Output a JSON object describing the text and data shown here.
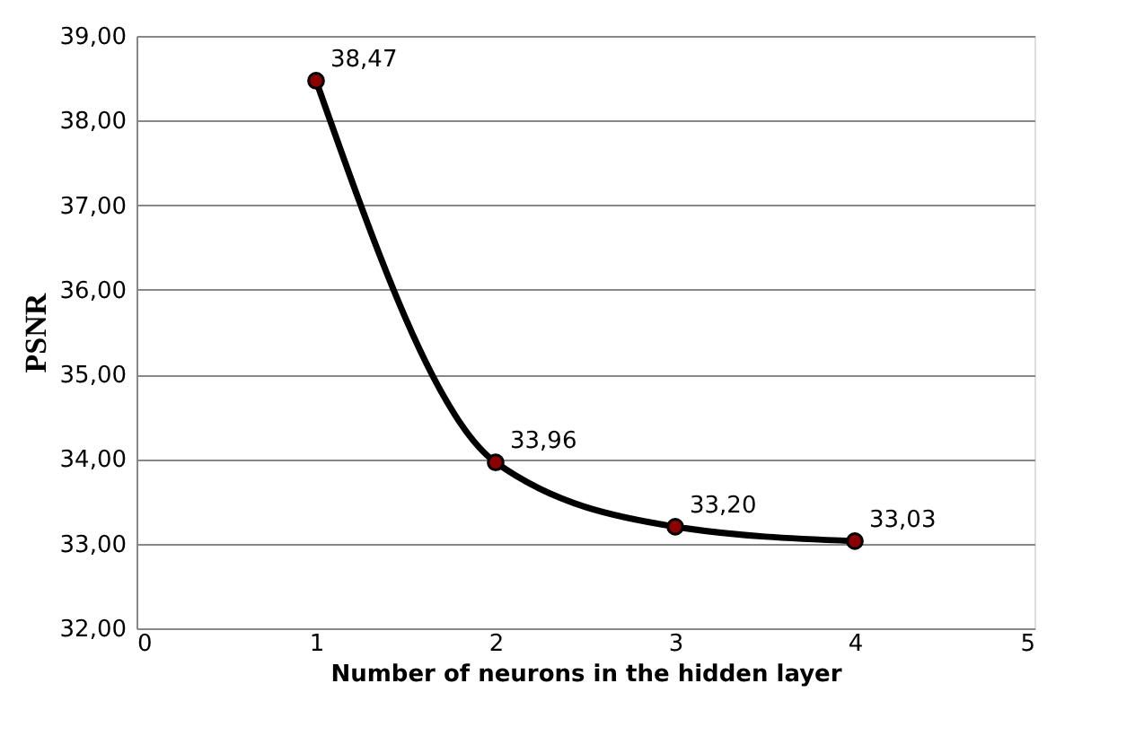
{
  "chart_data": {
    "type": "line",
    "xlabel": "Number of neurons in the hidden layer",
    "ylabel": "PSNR",
    "x": [
      1,
      2,
      3,
      4
    ],
    "series": [
      {
        "color": "#000000",
        "colors": [
          "#8b0000",
          "#8b0000",
          "#8b0000",
          "#8b0000"
        ],
        "values": [
          38.47,
          33.96,
          33.2,
          33.03
        ],
        "value_labels": [
          "38,47",
          "33,96",
          "33,20",
          "33,03"
        ]
      }
    ],
    "xlim": [
      0,
      5
    ],
    "xticks": [
      0,
      1,
      2,
      3,
      4,
      5
    ],
    "ylim": [
      32,
      39
    ],
    "yticks": [
      {
        "value": 32,
        "label": "32,00"
      },
      {
        "value": 33,
        "label": "33,00"
      },
      {
        "value": 34,
        "label": "34,00"
      },
      {
        "value": 35,
        "label": "35,00"
      },
      {
        "value": 36,
        "label": "36,00"
      },
      {
        "value": 37,
        "label": "37,00"
      },
      {
        "value": 38,
        "label": "38,00"
      },
      {
        "value": 39,
        "label": "39,00"
      }
    ],
    "grid": "y",
    "marker": "circle",
    "line_style": "solid",
    "legend": false
  }
}
